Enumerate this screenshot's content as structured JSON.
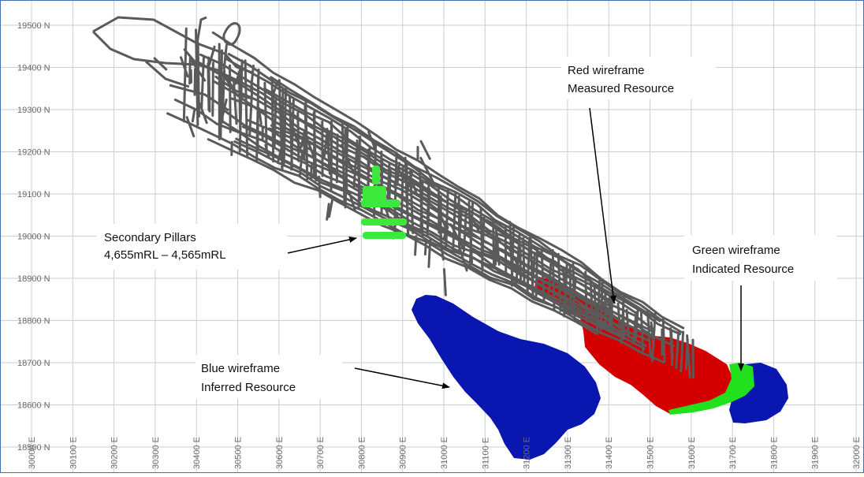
{
  "colors": {
    "tunnels": "#5a5a5a",
    "measured": "#d40000",
    "indicated": "#22e01e",
    "inferred": "#0a16b0",
    "pillars": "#3ee83a",
    "grid": "#c9cfd6",
    "frame": "#3f6fb5"
  },
  "axes": {
    "northing_labels": [
      "19500 N",
      "19400 N",
      "19300 N",
      "19200 N",
      "19100 N",
      "19000 N",
      "18900 N",
      "18800 N",
      "18700 N",
      "18600 N",
      "18500 N"
    ],
    "easting_labels": [
      "30000 E",
      "30100 E",
      "30200 E",
      "30300 E",
      "30400 E",
      "30500 E",
      "30600 E",
      "30700 E",
      "30800 E",
      "30900 E",
      "31000 E",
      "31100 E",
      "31200 E",
      "31300 E",
      "31400 E",
      "31500 E",
      "31600 E",
      "31700 E",
      "31800 E",
      "31900 E",
      "32000 E"
    ]
  },
  "callouts": {
    "pillars": {
      "line1": "Secondary Pillars",
      "line2": "4,655mRL – 4,565mRL"
    },
    "measured": {
      "line1": "Red wireframe",
      "line2": "Measured Resource"
    },
    "indicated": {
      "line1": "Green wireframe",
      "line2": "Indicated Resource"
    },
    "inferred": {
      "line1": "Blue wireframe",
      "line2": "Inferred Resource"
    }
  }
}
